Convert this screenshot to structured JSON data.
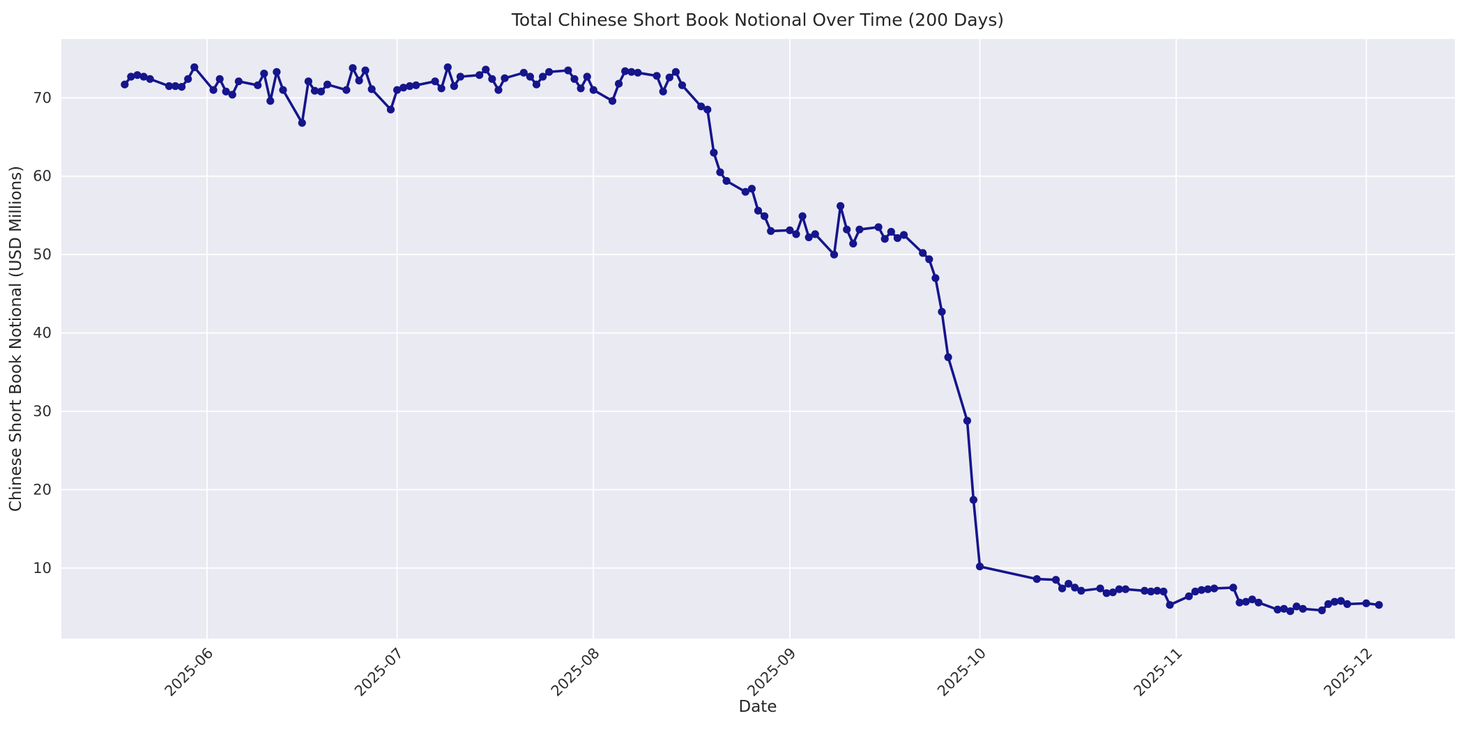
{
  "figure": {
    "background_color": "#ffffff",
    "plot_background_color": "#eaeaf2",
    "grid_color": "#ffffff",
    "text_color": "#262626",
    "line_color": "#15158c"
  },
  "chart_data": {
    "type": "line",
    "title": "Total Chinese Short Book Notional Over Time (200 Days)",
    "xlabel": "Date",
    "ylabel": "Chinese Short Book Notional (USD Millions)",
    "grid": true,
    "legend": false,
    "marker": "o",
    "x_tick_labels": [
      "2025-06",
      "2025-07",
      "2025-08",
      "2025-09",
      "2025-10",
      "2025-11",
      "2025-12"
    ],
    "y_ticks": [
      10,
      20,
      30,
      40,
      50,
      60,
      70
    ],
    "xlim": [
      "2025-05-09",
      "2025-12-15"
    ],
    "ylim": [
      1.0,
      77.5
    ],
    "series": [
      {
        "name": "Total Chinese Short Book Notional",
        "dates": [
          "2025-05-19",
          "2025-05-20",
          "2025-05-21",
          "2025-05-22",
          "2025-05-23",
          "2025-05-26",
          "2025-05-27",
          "2025-05-28",
          "2025-05-29",
          "2025-05-30",
          "2025-06-02",
          "2025-06-03",
          "2025-06-04",
          "2025-06-05",
          "2025-06-06",
          "2025-06-09",
          "2025-06-10",
          "2025-06-11",
          "2025-06-12",
          "2025-06-13",
          "2025-06-16",
          "2025-06-17",
          "2025-06-18",
          "2025-06-19",
          "2025-06-20",
          "2025-06-23",
          "2025-06-24",
          "2025-06-25",
          "2025-06-26",
          "2025-06-27",
          "2025-06-30",
          "2025-07-01",
          "2025-07-02",
          "2025-07-03",
          "2025-07-04",
          "2025-07-07",
          "2025-07-08",
          "2025-07-09",
          "2025-07-10",
          "2025-07-11",
          "2025-07-14",
          "2025-07-15",
          "2025-07-16",
          "2025-07-17",
          "2025-07-18",
          "2025-07-21",
          "2025-07-22",
          "2025-07-23",
          "2025-07-24",
          "2025-07-25",
          "2025-07-28",
          "2025-07-29",
          "2025-07-30",
          "2025-07-31",
          "2025-08-01",
          "2025-08-04",
          "2025-08-05",
          "2025-08-06",
          "2025-08-07",
          "2025-08-08",
          "2025-08-11",
          "2025-08-12",
          "2025-08-13",
          "2025-08-14",
          "2025-08-15",
          "2025-08-18",
          "2025-08-19",
          "2025-08-20",
          "2025-08-21",
          "2025-08-22",
          "2025-08-25",
          "2025-08-26",
          "2025-08-27",
          "2025-08-28",
          "2025-08-29",
          "2025-09-01",
          "2025-09-02",
          "2025-09-03",
          "2025-09-04",
          "2025-09-05",
          "2025-09-08",
          "2025-09-09",
          "2025-09-10",
          "2025-09-11",
          "2025-09-12",
          "2025-09-15",
          "2025-09-16",
          "2025-09-17",
          "2025-09-18",
          "2025-09-19",
          "2025-09-22",
          "2025-09-23",
          "2025-09-24",
          "2025-09-25",
          "2025-09-26",
          "2025-09-29",
          "2025-09-30",
          "2025-10-01",
          "2025-10-10",
          "2025-10-13",
          "2025-10-14",
          "2025-10-15",
          "2025-10-16",
          "2025-10-17",
          "2025-10-20",
          "2025-10-21",
          "2025-10-22",
          "2025-10-23",
          "2025-10-24",
          "2025-10-27",
          "2025-10-28",
          "2025-10-29",
          "2025-10-30",
          "2025-10-31",
          "2025-11-03",
          "2025-11-04",
          "2025-11-05",
          "2025-11-06",
          "2025-11-07",
          "2025-11-10",
          "2025-11-11",
          "2025-11-12",
          "2025-11-13",
          "2025-11-14",
          "2025-11-17",
          "2025-11-18",
          "2025-11-19",
          "2025-11-20",
          "2025-11-21",
          "2025-11-24",
          "2025-11-25",
          "2025-11-26",
          "2025-11-27",
          "2025-11-28",
          "2025-12-01",
          "2025-12-03"
        ],
        "values": [
          71.7,
          72.7,
          72.9,
          72.7,
          72.4,
          71.5,
          71.5,
          71.4,
          72.4,
          73.9,
          71.0,
          72.4,
          70.8,
          70.4,
          72.1,
          71.6,
          73.1,
          69.6,
          73.3,
          71.0,
          66.8,
          72.1,
          70.9,
          70.8,
          71.7,
          71.0,
          73.8,
          72.2,
          73.5,
          71.1,
          68.5,
          71.0,
          71.3,
          71.5,
          71.6,
          72.1,
          71.2,
          73.9,
          71.5,
          72.7,
          72.9,
          73.6,
          72.4,
          71.0,
          72.5,
          73.2,
          72.7,
          71.7,
          72.7,
          73.3,
          73.5,
          72.4,
          71.2,
          72.7,
          71.0,
          69.6,
          71.8,
          73.4,
          73.3,
          73.2,
          72.8,
          70.8,
          72.6,
          73.3,
          71.6,
          68.9,
          68.5,
          63.0,
          60.5,
          59.4,
          58.0,
          58.4,
          55.6,
          54.9,
          53.0,
          53.1,
          52.6,
          54.9,
          52.2,
          52.6,
          50.0,
          56.2,
          53.2,
          51.4,
          53.2,
          53.5,
          52.0,
          52.9,
          52.1,
          52.5,
          50.2,
          49.4,
          47.0,
          42.7,
          36.9,
          28.8,
          18.7,
          10.2,
          8.6,
          8.5,
          7.4,
          8.0,
          7.5,
          7.1,
          7.4,
          6.8,
          6.9,
          7.3,
          7.3,
          7.1,
          7.0,
          7.1,
          7.0,
          5.3,
          6.4,
          7.0,
          7.2,
          7.3,
          7.4,
          7.5,
          5.6,
          5.7,
          6.0,
          5.6,
          4.7,
          4.8,
          4.5,
          5.1,
          4.8,
          4.6,
          5.4,
          5.7,
          5.8,
          5.4,
          5.5,
          5.3
        ]
      }
    ]
  }
}
